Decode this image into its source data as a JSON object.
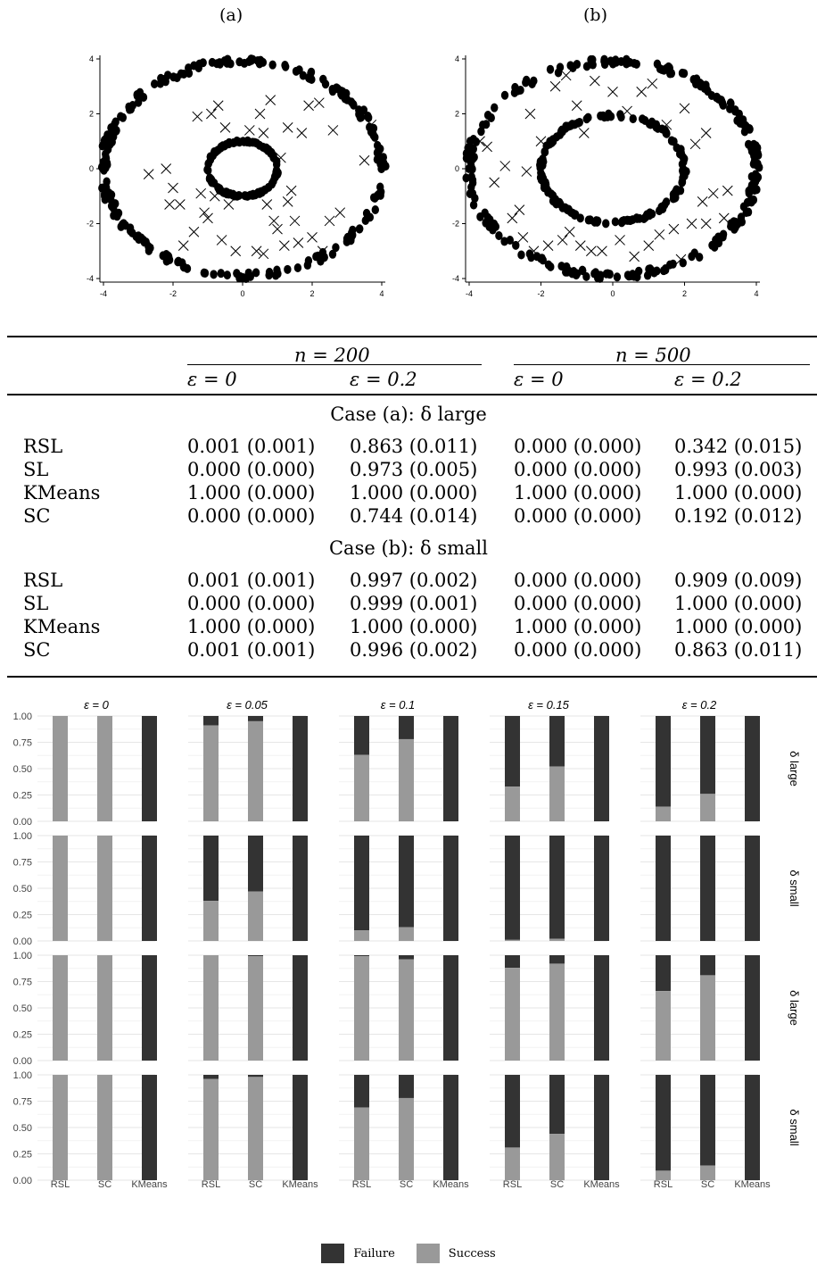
{
  "chart_data": [
    {
      "type": "scatter",
      "panel": "(a)",
      "xlim": [
        -4,
        4
      ],
      "ylim": [
        -4,
        4
      ],
      "x_ticks": [
        "-4",
        "-2",
        "0",
        "2",
        "4"
      ],
      "y_ticks": [
        "-4",
        "-2",
        "0",
        "2",
        "4"
      ],
      "series": [
        {
          "marker": "dot",
          "shape": "ring",
          "center": [
            0,
            0
          ],
          "radius_x": 4.0,
          "radius_y": 3.9
        },
        {
          "marker": "dot",
          "shape": "ring",
          "center": [
            0,
            0
          ],
          "radius_x": 1.0,
          "radius_y": 1.0
        },
        {
          "marker": "cross",
          "shape": "scatter",
          "points": [
            [
              -2.7,
              -0.2
            ],
            [
              -2.2,
              0
            ],
            [
              -2.1,
              -1.3
            ],
            [
              -2.0,
              -0.7
            ],
            [
              -1.8,
              -1.3
            ],
            [
              -1.7,
              -2.8
            ],
            [
              -1.4,
              -2.3
            ],
            [
              -1.2,
              -0.9
            ],
            [
              -1.1,
              -1.6
            ],
            [
              -1.0,
              -1.8
            ],
            [
              -0.9,
              2.0
            ],
            [
              -0.8,
              -1.0
            ],
            [
              -0.7,
              2.3
            ],
            [
              -0.6,
              -2.6
            ],
            [
              -0.5,
              1.5
            ],
            [
              -0.4,
              -1.3
            ],
            [
              -0.2,
              -3.0
            ],
            [
              0.2,
              1.4
            ],
            [
              0.4,
              -3.0
            ],
            [
              0.5,
              2.0
            ],
            [
              0.6,
              1.3
            ],
            [
              0.7,
              -1.3
            ],
            [
              0.8,
              2.5
            ],
            [
              0.9,
              -1.9
            ],
            [
              1.0,
              -2.2
            ],
            [
              1.1,
              0.4
            ],
            [
              1.2,
              -2.8
            ],
            [
              1.3,
              1.5
            ],
            [
              1.4,
              -0.8
            ],
            [
              1.5,
              -1.9
            ],
            [
              1.6,
              -2.7
            ],
            [
              1.7,
              1.3
            ],
            [
              1.9,
              2.3
            ],
            [
              2.0,
              -2.5
            ],
            [
              2.2,
              2.4
            ],
            [
              2.3,
              -3.0
            ],
            [
              2.5,
              -1.9
            ],
            [
              2.6,
              1.4
            ],
            [
              2.8,
              -1.6
            ],
            [
              3.5,
              0.3
            ],
            [
              3.7,
              1.6
            ],
            [
              0.6,
              -3.1
            ],
            [
              -1.3,
              1.9
            ],
            [
              1.3,
              -1.2
            ]
          ]
        }
      ]
    },
    {
      "type": "scatter",
      "panel": "(b)",
      "xlim": [
        -4,
        4
      ],
      "ylim": [
        -4,
        4
      ],
      "x_ticks": [
        "-4",
        "-2",
        "0",
        "2",
        "4"
      ],
      "y_ticks": [
        "-4",
        "-2",
        "0",
        "2",
        "4"
      ],
      "series": [
        {
          "marker": "dot",
          "shape": "ring",
          "center": [
            0,
            0
          ],
          "radius_x": 4.0,
          "radius_y": 3.9
        },
        {
          "marker": "dot",
          "shape": "ring",
          "center": [
            0,
            0
          ],
          "radius_x": 2.0,
          "radius_y": 1.95
        },
        {
          "marker": "cross",
          "shape": "scatter",
          "points": [
            [
              -3.7,
              1.0
            ],
            [
              -3.5,
              0.8
            ],
            [
              -3.3,
              -0.5
            ],
            [
              -3.0,
              0.1
            ],
            [
              -2.8,
              -1.8
            ],
            [
              -2.6,
              -1.5
            ],
            [
              -2.5,
              -2.5
            ],
            [
              -2.4,
              -0.1
            ],
            [
              -2.3,
              2.0
            ],
            [
              -2.2,
              -3.0
            ],
            [
              -2.0,
              1.0
            ],
            [
              -1.8,
              -2.8
            ],
            [
              -1.6,
              3.0
            ],
            [
              -1.4,
              -2.6
            ],
            [
              -1.3,
              3.4
            ],
            [
              -1.2,
              -2.3
            ],
            [
              -1.0,
              2.3
            ],
            [
              -0.9,
              -2.8
            ],
            [
              -0.8,
              1.3
            ],
            [
              -0.6,
              -3.0
            ],
            [
              -0.5,
              3.2
            ],
            [
              -0.3,
              -3.0
            ],
            [
              0.0,
              2.8
            ],
            [
              0.2,
              -2.6
            ],
            [
              0.4,
              2.1
            ],
            [
              0.6,
              -3.2
            ],
            [
              0.8,
              2.8
            ],
            [
              1.0,
              -2.8
            ],
            [
              1.1,
              3.1
            ],
            [
              1.3,
              -2.4
            ],
            [
              1.5,
              1.6
            ],
            [
              1.7,
              -2.2
            ],
            [
              1.9,
              -3.3
            ],
            [
              2.0,
              2.2
            ],
            [
              2.2,
              -2.0
            ],
            [
              2.5,
              -1.2
            ],
            [
              2.6,
              1.3
            ],
            [
              2.6,
              -2.0
            ],
            [
              2.8,
              -0.9
            ],
            [
              3.2,
              -0.8
            ],
            [
              2.3,
              0.9
            ],
            [
              3.1,
              -1.8
            ]
          ]
        }
      ]
    },
    {
      "type": "table",
      "col_groups": [
        "n = 200",
        "n = 500"
      ],
      "columns": [
        "ε = 0",
        "ε = 0.2",
        "ε = 0",
        "ε = 0.2"
      ],
      "sections": [
        {
          "title": "Case (a): δ large",
          "rows": [
            {
              "method": "RSL",
              "values": [
                "0.001 (0.001)",
                "0.863 (0.011)",
                "0.000 (0.000)",
                "0.342 (0.015)"
              ]
            },
            {
              "method": "SL",
              "values": [
                "0.000 (0.000)",
                "0.973 (0.005)",
                "0.000 (0.000)",
                "0.993 (0.003)"
              ]
            },
            {
              "method": "KMeans",
              "values": [
                "1.000 (0.000)",
                "1.000 (0.000)",
                "1.000 (0.000)",
                "1.000 (0.000)"
              ]
            },
            {
              "method": "SC",
              "values": [
                "0.000 (0.000)",
                "0.744 (0.014)",
                "0.000 (0.000)",
                "0.192 (0.012)"
              ]
            }
          ]
        },
        {
          "title": "Case (b): δ small",
          "rows": [
            {
              "method": "RSL",
              "values": [
                "0.001 (0.001)",
                "0.997 (0.002)",
                "0.000 (0.000)",
                "0.909 (0.009)"
              ]
            },
            {
              "method": "SL",
              "values": [
                "0.000 (0.000)",
                "0.999 (0.001)",
                "0.000 (0.000)",
                "1.000 (0.000)"
              ]
            },
            {
              "method": "KMeans",
              "values": [
                "1.000 (0.000)",
                "1.000 (0.000)",
                "1.000 (0.000)",
                "1.000 (0.000)"
              ]
            },
            {
              "method": "SC",
              "values": [
                "0.001 (0.001)",
                "0.996 (0.002)",
                "0.000 (0.000)",
                "0.863 (0.011)"
              ]
            }
          ]
        }
      ]
    },
    {
      "type": "bar",
      "stacked": true,
      "column_facets": [
        "ε = 0",
        "ε = 0.05",
        "ε = 0.1",
        "ε = 0.15",
        "ε = 0.2"
      ],
      "row_facets": [
        "δ large",
        "δ small",
        "δ large",
        "δ small"
      ],
      "categories": [
        "RSL",
        "SC",
        "KMeans"
      ],
      "y_ticks": [
        "0.00",
        "0.25",
        "0.50",
        "0.75",
        "1.00"
      ],
      "ylim": [
        0,
        1
      ],
      "series_names": [
        "Failure",
        "Success"
      ],
      "success_values": [
        [
          [
            1.0,
            1.0,
            0.0
          ],
          [
            0.91,
            0.95,
            0.0
          ],
          [
            0.63,
            0.78,
            0.0
          ],
          [
            0.33,
            0.52,
            0.0
          ],
          [
            0.14,
            0.26,
            0.0
          ]
        ],
        [
          [
            1.0,
            1.0,
            0.0
          ],
          [
            0.38,
            0.47,
            0.0
          ],
          [
            0.1,
            0.13,
            0.0
          ],
          [
            0.01,
            0.02,
            0.0
          ],
          [
            0.0,
            0.0,
            0.0
          ]
        ],
        [
          [
            1.0,
            1.0,
            0.0
          ],
          [
            1.0,
            0.99,
            0.0
          ],
          [
            0.99,
            0.96,
            0.0
          ],
          [
            0.88,
            0.92,
            0.0
          ],
          [
            0.66,
            0.81,
            0.0
          ]
        ],
        [
          [
            1.0,
            1.0,
            0.0
          ],
          [
            0.96,
            0.98,
            0.0
          ],
          [
            0.69,
            0.78,
            0.0
          ],
          [
            0.31,
            0.44,
            0.0
          ],
          [
            0.09,
            0.14,
            0.0
          ]
        ]
      ],
      "colors": {
        "Failure": "#333333",
        "Success": "#999999"
      },
      "legend_position": "bottom"
    }
  ],
  "labels": {
    "panel_a": "(a)",
    "panel_b": "(b)"
  },
  "legend": {
    "failure": "Failure",
    "success": "Success"
  }
}
